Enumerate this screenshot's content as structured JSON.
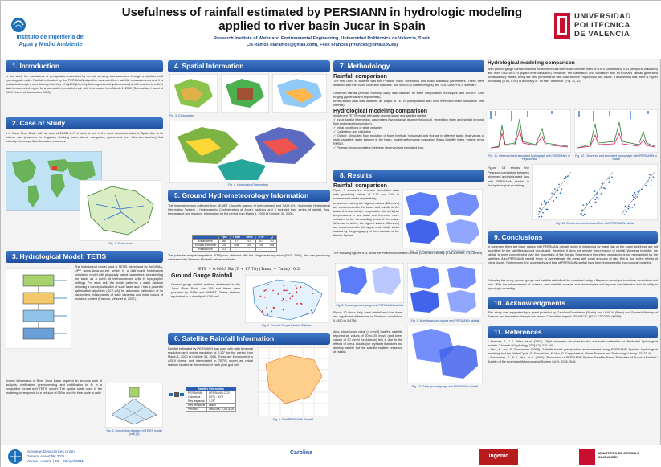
{
  "header": {
    "title_line1": "Usefulness of rainfall estimated by PERSIANN in hydrologic modeling",
    "title_line2": "applied to river basin Jucar in Spain",
    "institution": "Research Institute of Water and Environmental Engineering, Universidad Politécnica de Valencia, Spain",
    "authors": "Lía Ramos (liaramos@gmail.com), Félix Francés (ffrances@hma.upv.es)",
    "iiama_line1": "Instituto de Ingeniería del",
    "iiama_line2": "Agua y Medio Ambiente",
    "upv_line1": "UNIVERSIDAD",
    "upv_line2": "POLITECNICA",
    "upv_line3": "DE VALENCIA"
  },
  "sections": {
    "intro": {
      "heading": "1. Introduction",
      "text": "In this study the usefulness of precipitation estimated by remote sensing was assessed through a rainfall-runoff hydrological model. Rainfall estimated by the PERSIANN algorithm was used from satellite measurements and it is available through a user-friendly interface of HyDIS (http://hydis8.eng.uci.edu/hydis-unesco/) and it enables to collect data in a selected region for a cumulative period interval, with information from March 1, 2000 (Sorooshian, Hsu et al 2000; Hsu and Sorooshian 2008)."
    },
    "case": {
      "heading": "2. Case of Study",
      "text": "It is Jucar River Basin with an area of 21434 km². It basin is one of the most economic value in Spain due to its intense use (channels for irrigation, drinking water, dams, navigation, sports and river fisheries, tourism) that intensify the competition for water resources.",
      "caption": "Fig. 1. Study zone"
    },
    "model": {
      "heading": "3. Hydrological Model: TETIS",
      "text1": "The hydrological model used is TETIS, developed by the IIAMA-UPV (www.iiama.upv.es), which is a distributed hydrological simulation model with physically based parameters, representing the basin as a mesh of interconnected cells in topographic settings. For each cell, the model performs a water balance following a conceptualization of such tanks and it has a powerful optimization algorithm (SCE-UA) for automatic calibration of its parameters, initial values of state variables and initial values of moisture content (Francés, Vélez et al. 2007).",
      "text2": "Source information of River Jucar Basin required an arduous work of analysis, verification, preprocessing and codification to fit in a compatible format with TETIS model. The spatial scale used in the modeling corresponds to a cell size of 500m and the time scale is daily.",
      "caption": "Fig. 2. Conceptual diagram of TETIS model (cell) [2]"
    },
    "spatial": {
      "heading": "4. Spatial Information",
      "cap_a": "Fig. 3. Cartography",
      "cap_b": "Fig. 4. Hydrological Parameters"
    },
    "ground": {
      "heading": "5. Ground Hydrometeorology Information",
      "text": "The information was collected from AEMET (Spanish Agency of Meteorology) and SAIH-CHJ (Automatic Hydrological Information System - Hydrographic Confederation of Jucar), stations and it included time series of rainfall, flow, temperature and reservoir information for the period from March 1, 2000 to October 31, 2006.",
      "text2": "The potential evapotranspiration (ETP) was obtained with the Hargreaves equation (FAO, 2006), this was previously calibrated with Penman-Monteith values available.",
      "equation": "ETP = 0.0023 Ra (T + 17.78) (Tmax − Tmin)^0.5",
      "subheading": "Ground Gauge Rainfall",
      "text3": "Ground gauge rainfall stations distributed in the Jucar River Basin are 169 and these were provided by SAIH and AEMET. These stations equivalent to a density of 1/116 km².",
      "caption": "Fig. 5. Ground Gauge Rainfall Stations"
    },
    "satellite": {
      "heading": "6. Satellite Rainfall Information",
      "text": "Rainfall estimated by PERSIANN was used with daily temporal resolution and spatial resolution of 0.25° for the period from March 1, 2000 to October 31, 2006. These are incorporated in ASCII format and interpolated in TETIS model as virtual stations located at the centroid of each pixel grid cell.",
      "caption": "Fig. 6. Grid PERSIANN Rainfall"
    },
    "method": {
      "heading": "7. Methodology",
      "sub1": "Rainfall comparison",
      "text1": "The test used to analyze was the Pearson linear correlation and basic statistical parameters. These were obtained with the \"Band collection statistics\" tool of ArcGIS (raster images) and STATGRAPHICS software.",
      "bullet1": "Observed rainfall (annual, monthly, daily) was obtained by three interpolation techniques with ArcGIS: IDW, Kriging (spherical and exponential).",
      "bullet2": "Areal rainfall data was obtained as output of TETIS (interpolation with IDW method in each simulation time interval).",
      "sub2": "Hydrological modeling comparison",
      "text2": "Implement TETIS model with daily ground gauge and satellite rainfall:",
      "items": [
        "Input: spatial information, parameters (hydrological, geomorphological), vegetation index and rainfall (ground, flow and evapotranspiration).",
        "Initial conditions of state variables",
        "Calibration and validation",
        "Output: Simulated flow, evolution of flows (vertical, horizontal) and storage in different tanks, final values of state variables, water balance in the basin, model performance evaluation (Nash-Sutcliffe index, volume error, RMSE).",
        "Pearson linear correlation between observed and simulated flow."
      ]
    },
    "results": {
      "heading": "8. Results",
      "sub": "Rainfall comparison",
      "text1": "Figure 7 shows the Pearson correlation daily with promising values of 0.70 and 0.60 in summer and winter respectively.",
      "text2": "In summer having the highest values (20 mm/d) are concentrated in the lower and middle of the basin, this due to high evaporation due to higher temperatures in sea water and therefore more moisture in the surrounding areas of the coast. Whereas in winter, the highest values (40 mm/d) are concentrated in the upper and middle basin caused by the geography of the mountain of the Iberian System.",
      "text3": "The following figures 8, 9, show the Pearson correlation annual (0.24) and monthly (0.54-summer, 0.44-winter).",
      "text4": "Figure 10 show daily areal rainfall and that there are significant differences in Pearson correlation: 0.4390 to 0.4786.",
      "text5": "Also, show lower value (< mm/d) that the satellite reported as values of 20 to 25 mm/d (and lower values of 30 mm/d for Alarcon) this is due to the effects of cirrus clouds (ice crystals) that does not develop rainfall but the satellite register presence of rainfall.",
      "cap7": "Fig. 7. Daily ground gauge and PERSIANN rainfall",
      "cap8": "Fig. 8. Annual ground gauge and PERSIANN rainfall",
      "cap9": "Fig. 9. Monthly ground gauge and PERSIANN rainfall",
      "cap10": "Fig. 10. Daily ground gauge and PERSIANN rainfall"
    },
    "hydro": {
      "heading": "Hydrological modeling comparison",
      "text": "With ground gauge rainfall obtained excellent results with Nash-Sutcliffe index of 0.874 (calibration), 0.91 (temporal validation) and from 0.62 to 0.75 (space-time validation). However, the calibration and validation with PERSIANN rainfall generated unsatisfactory values, being the best performance with calibration in Pajaroncillo and Sacra. It also shows that there is higher probability (0.53, 0.09) of accuracy of \"no rain\" detection. (Fig. 11, 12)",
      "cap11": "Fig. 11. Observed and simulated hydrograph with PERSIANN in Pajaroncillo",
      "cap12": "Fig. 12. Observed and simulated hydrograph with PERSIANN in Sacra",
      "text2": "Figure 13 shows the Pearson correlation between observed and simulated flow with PERSIANN rainfall in the hydrological modeling.",
      "cap13": "Fig. 13. Observed and simulated flow with PERSIANN rainfall"
    },
    "concl": {
      "heading": "9. Conclusions",
      "text1": "In summary, there are lower values with PERSIANN rainfall, which is influenced by warm rain on the coast and these are not quantified by the satellites as cold clouds and, therefore, it does not register the presence of rainfall. Whereas in winter, the rainfall is more concentrated over the mountains of the Iberian System and this effect orographic is not represented by the satellites. Also PERSIANN rainfall tends to overestimate the areas with small amounts of rain, this is due to the effects of cirrus clouds. Furthermore, the uncertainty and bias of PERSIANN rainfall have been transferred to hydrological modeling.",
      "text2": "Following the study, ground gauge and satellite rainfall will be combined using a Bayesian technique to reduce uncertainty and bias. With the advancement of science, new satellite sensors and technologies will improve the detection and its utility in hydrologic modeling."
    },
    "ack": {
      "heading": "10. Acknowledgments",
      "text": "This study was supported by a grant provided by Carolina Foundation (Spain) and UNALM (Perú) and Spanish Ministry of Science and Innovation through the project Consolider-Ingenio \"SCARCE\" (2010-CSD2009-00065)."
    },
    "refs": {
      "heading": "11. References",
      "items": [
        "Francés, F., J. I. Vélez, et al. (2007). \"Split-parameter structure for the automatic calibration of distributed hydrological models.\" Journal of Hydrology 332(1-2): 226-240.",
        "Hsu, K. and S. Sorooshian (2008). Satellite-based precipitation measurement using PERSIANN System. Hydrological modeling and the Water Cycle. S. Sorooshian, K. Hsu, E. Coppola et al, Water Science and Technology Library. 63: 27-48.",
        "Sorooshian, S., K. L. Hsu, et al. (2000). \"Evaluation of PERSIANN System Satellite-Based Estimates of Tropical Rainfall.\" Bulletin of the American Meteorological Society 81(9): 2035-2046."
      ]
    }
  },
  "tables": {
    "ground_table": {
      "headers": [
        "",
        "Ppd",
        "Tmax",
        "Tmin",
        "ETP",
        "Q"
      ],
      "rows": [
        [
          "Estaciones",
          "169",
          "57",
          "57",
          "57",
          "40"
        ],
        [
          "Escala temporal",
          "Día",
          "Día",
          "Día",
          "Día",
          "Día"
        ],
        [
          "Resolución",
          "0.5",
          "-",
          "-",
          "-",
          "-"
        ]
      ]
    },
    "satellite_table": {
      "title": "Satellite Information",
      "rows": [
        [
          "PERSIANN",
          "PERSIANN-CCS"
        ],
        [
          "Cobertura",
          "60°N - 60°S"
        ],
        [
          "Res. espacial",
          "0.25°"
        ],
        [
          "Res. temporal",
          "Diario"
        ],
        [
          "Periodo",
          "Mar 2000 - Oct 2006"
        ]
      ]
    }
  },
  "footer": {
    "egu_line1": "European Geosciences Union",
    "egu_line2": "General Assembly 2011",
    "egu_line3": "Vienna | Austria | 03 – 08 April 2011",
    "fc": "Carolina",
    "ci": "ingenio",
    "ministry": "MINISTERIO DE CIENCIA E INNOVACIÓN"
  },
  "colors": {
    "section_header": "#2a5db0",
    "accent_blue": "#1d6fb8",
    "title_text": "#111111",
    "upv_red": "#c8102e"
  }
}
